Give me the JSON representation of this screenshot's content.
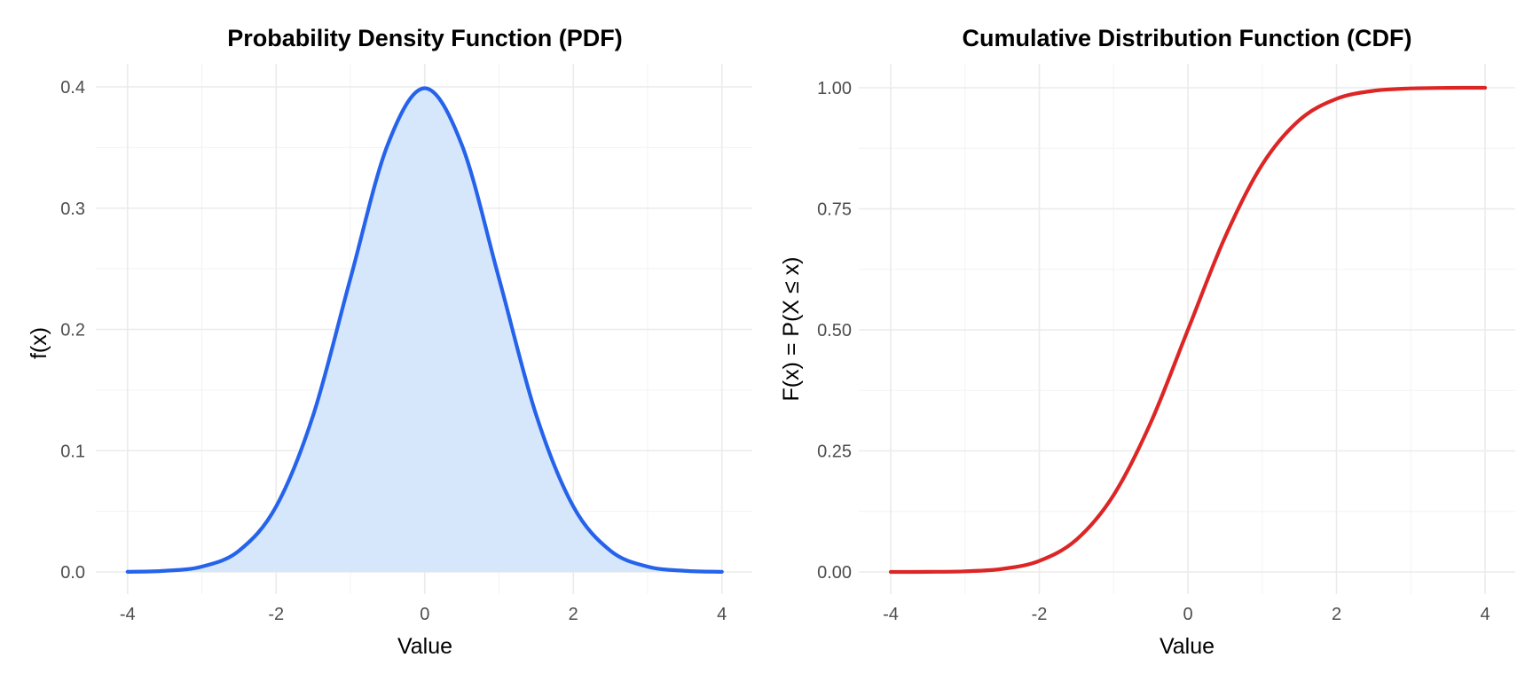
{
  "chart_data": [
    {
      "type": "area",
      "title": "Probability Density Function (PDF)",
      "xlabel": "Value",
      "ylabel": "f(x)",
      "xlim": [
        -4,
        4
      ],
      "ylim": [
        0,
        0.4
      ],
      "grid": true,
      "x_ticks": [
        -4,
        -2,
        0,
        2,
        4
      ],
      "x_tick_labels": [
        "-4",
        "-2",
        "0",
        "2",
        "4"
      ],
      "y_ticks": [
        0,
        0.1,
        0.2,
        0.3,
        0.4
      ],
      "y_tick_labels": [
        "0.0",
        "0.1",
        "0.2",
        "0.3",
        "0.4"
      ],
      "line_color": "#2563eb",
      "fill_color": "#d6e6fb",
      "series": [
        {
          "x": [
            -4,
            -3.5,
            -3,
            -2.5,
            -2,
            -1.5,
            -1,
            -0.5,
            0,
            0.5,
            1,
            1.5,
            2,
            2.5,
            3,
            3.5,
            4
          ],
          "values": [
            0.0001,
            0.0009,
            0.0044,
            0.0175,
            0.054,
            0.1295,
            0.242,
            0.3521,
            0.3989,
            0.3521,
            0.242,
            0.1295,
            0.054,
            0.0175,
            0.0044,
            0.0009,
            0.0001
          ]
        }
      ]
    },
    {
      "type": "line",
      "title": "Cumulative Distribution Function (CDF)",
      "xlabel": "Value",
      "ylabel": "F(x) = P(X ≤ x)",
      "xlim": [
        -4,
        4
      ],
      "ylim": [
        0,
        1
      ],
      "grid": true,
      "x_ticks": [
        -4,
        -2,
        0,
        2,
        4
      ],
      "x_tick_labels": [
        "-4",
        "-2",
        "0",
        "2",
        "4"
      ],
      "y_ticks": [
        0,
        0.25,
        0.5,
        0.75,
        1
      ],
      "y_tick_labels": [
        "0.00",
        "0.25",
        "0.50",
        "0.75",
        "1.00"
      ],
      "line_color": "#dc2626",
      "series": [
        {
          "x": [
            -4,
            -3.5,
            -3,
            -2.5,
            -2,
            -1.5,
            -1,
            -0.5,
            0,
            0.5,
            1,
            1.5,
            2,
            2.5,
            3,
            3.5,
            4
          ],
          "values": [
            0.0,
            0.0002,
            0.0013,
            0.0062,
            0.0228,
            0.0668,
            0.1587,
            0.3085,
            0.5,
            0.6915,
            0.8413,
            0.9332,
            0.9772,
            0.9938,
            0.9987,
            0.9998,
            1.0
          ]
        }
      ]
    }
  ]
}
